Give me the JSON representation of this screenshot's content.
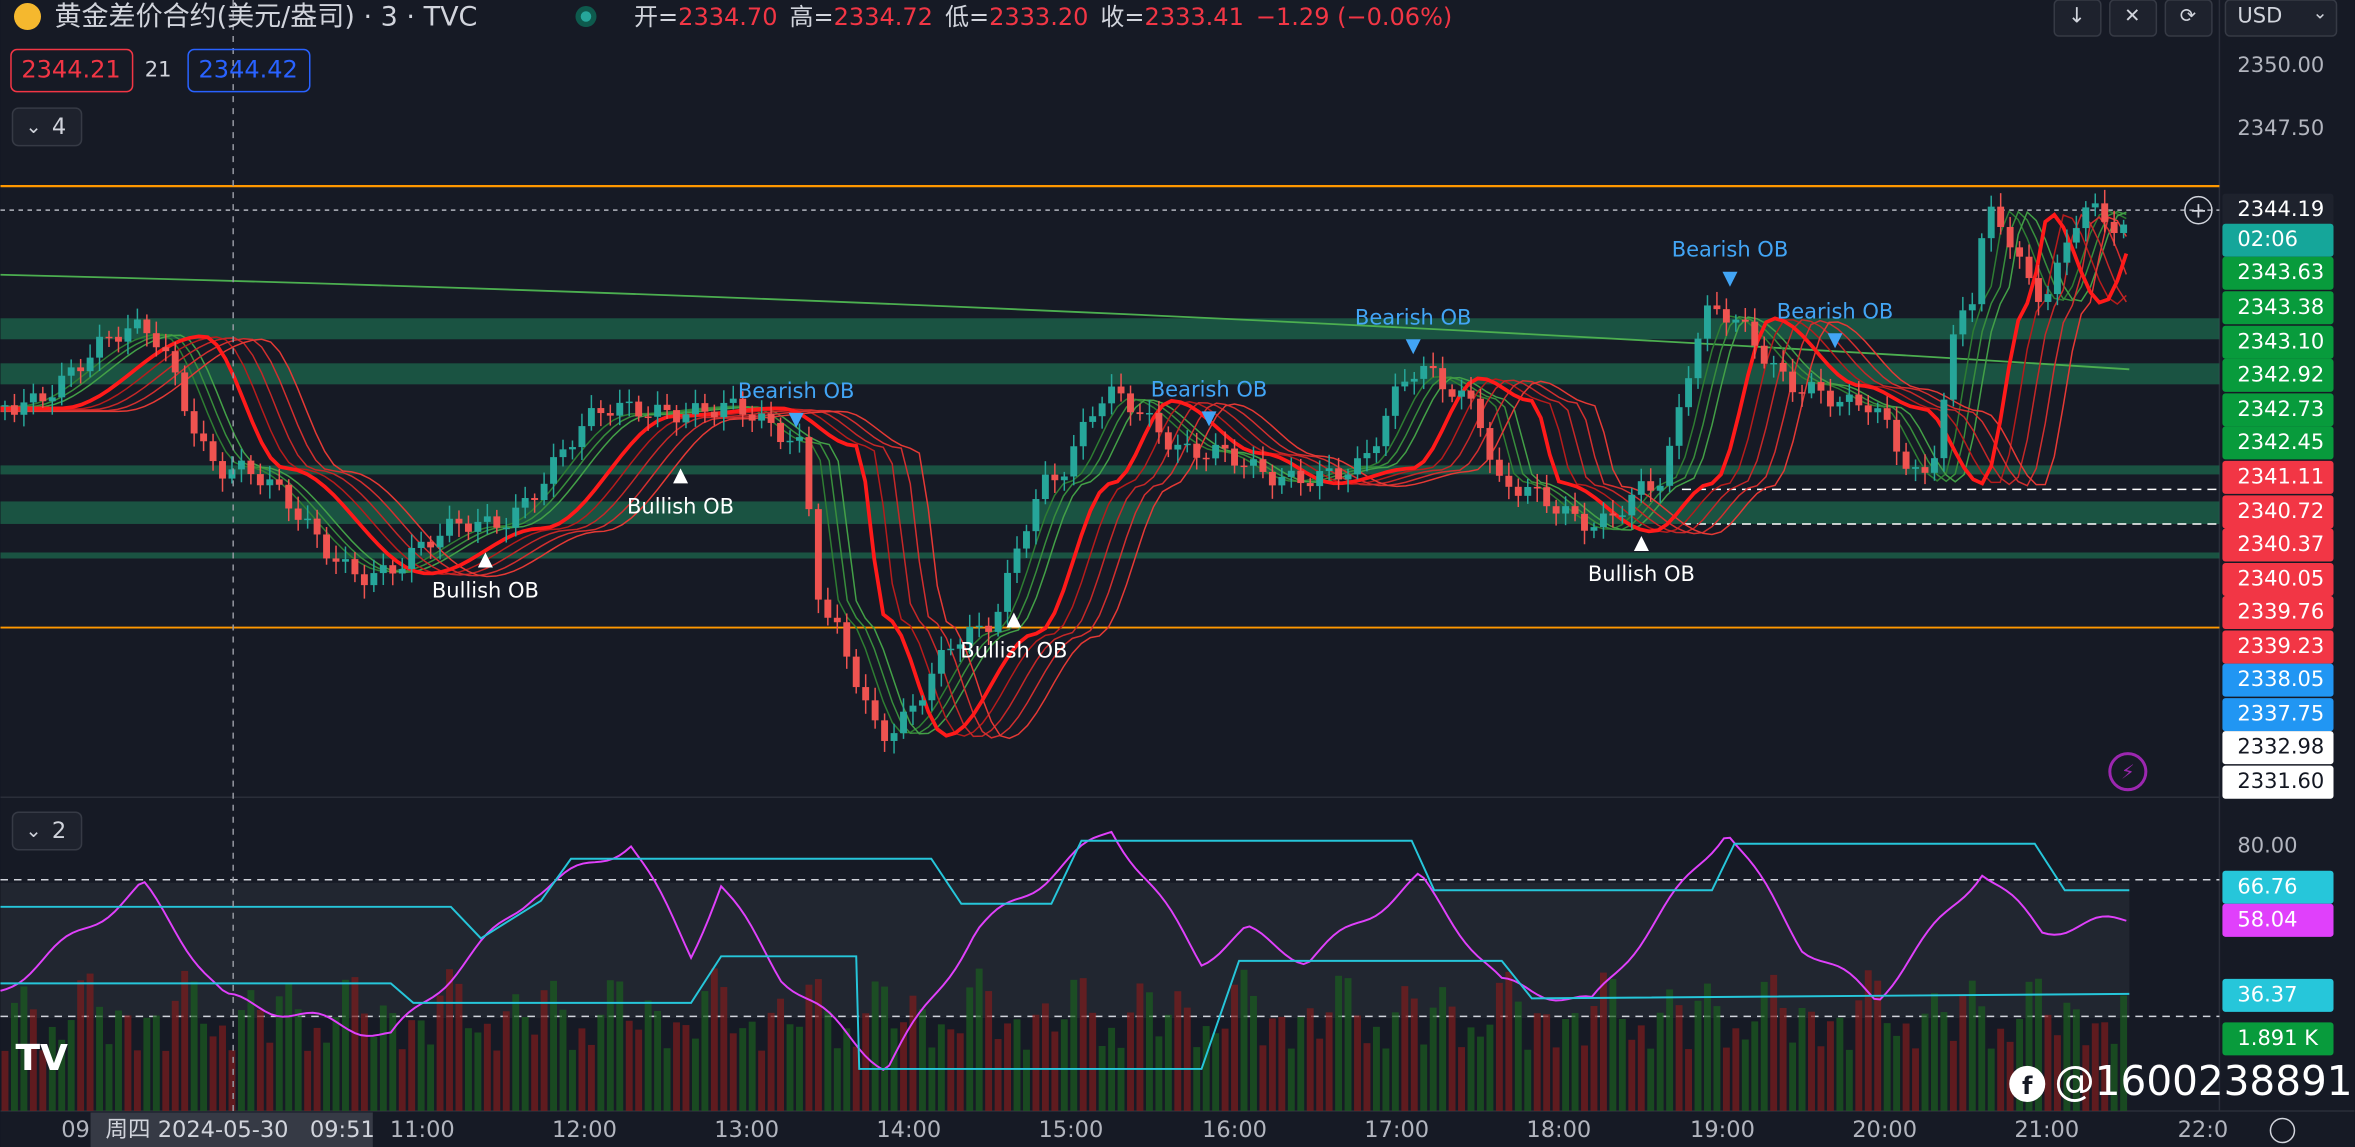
{
  "header": {
    "symbol": "黄金差价合约(美元/盎司) · 3 · TVC",
    "ohlc": [
      {
        "label": "开=",
        "value": "2334.70"
      },
      {
        "label": "高=",
        "value": "2334.72"
      },
      {
        "label": "低=",
        "value": "2333.20"
      },
      {
        "label": "收=",
        "value": "2333.41"
      }
    ],
    "change": "−1.29 (−0.06%)"
  },
  "price_boxes": {
    "bid": "2344.21",
    "spread": "21",
    "ask": "2344.42"
  },
  "pane_counts": [
    "4",
    "2"
  ],
  "currency": "USD",
  "price_axis": [
    {
      "text": "2350.00",
      "color": "none"
    },
    {
      "text": "2347.50",
      "color": "none"
    },
    {
      "text": "2344.19",
      "color": "#1e222d"
    },
    {
      "text": "02:06",
      "color": "#15a69a"
    },
    {
      "text": "2343.63",
      "color": "#089b3c"
    },
    {
      "text": "2343.38",
      "color": "#089b3c"
    },
    {
      "text": "2343.10",
      "color": "#089b3c"
    },
    {
      "text": "2342.92",
      "color": "#089b3c"
    },
    {
      "text": "2342.73",
      "color": "#089b3c"
    },
    {
      "text": "2342.45",
      "color": "#089b3c"
    },
    {
      "text": "2341.11",
      "color": "#f23645"
    },
    {
      "text": "2340.72",
      "color": "#f23645"
    },
    {
      "text": "2340.37",
      "color": "#f23645"
    },
    {
      "text": "2340.05",
      "color": "#f23645"
    },
    {
      "text": "2339.76",
      "color": "#f23645"
    },
    {
      "text": "2339.23",
      "color": "#f23645"
    },
    {
      "text": "2338.05",
      "color": "#2196f3"
    },
    {
      "text": "2337.75",
      "color": "#2196f3"
    },
    {
      "text": "2332.98",
      "color": "#ffffff"
    },
    {
      "text": "2331.60",
      "color": "#ffffff"
    }
  ],
  "lower_axis": [
    {
      "text": "80.00",
      "color": "none"
    },
    {
      "text": "66.76",
      "color": "#26c6da"
    },
    {
      "text": "58.04",
      "color": "#e040fb"
    },
    {
      "text": "36.37",
      "color": "#26c6da"
    },
    {
      "text": "1.891 K",
      "color": "#089b3c"
    }
  ],
  "annotations": [
    "Bullish OB",
    "Bullish OB",
    "Bullish OB",
    "Bullish OB",
    "Bearish OB",
    "Bearish OB",
    "Bearish OB",
    "Bearish OB",
    "Bearish OB"
  ],
  "time_axis": [
    "09",
    "11:00",
    "12:00",
    "13:00",
    "14:00",
    "15:00",
    "16:00",
    "17:00",
    "18:00",
    "19:00",
    "20:00",
    "21:00",
    "22:0"
  ],
  "crosshair_time": "周四 2024-05-30   09:51",
  "watermark": "@1600238891"
}
